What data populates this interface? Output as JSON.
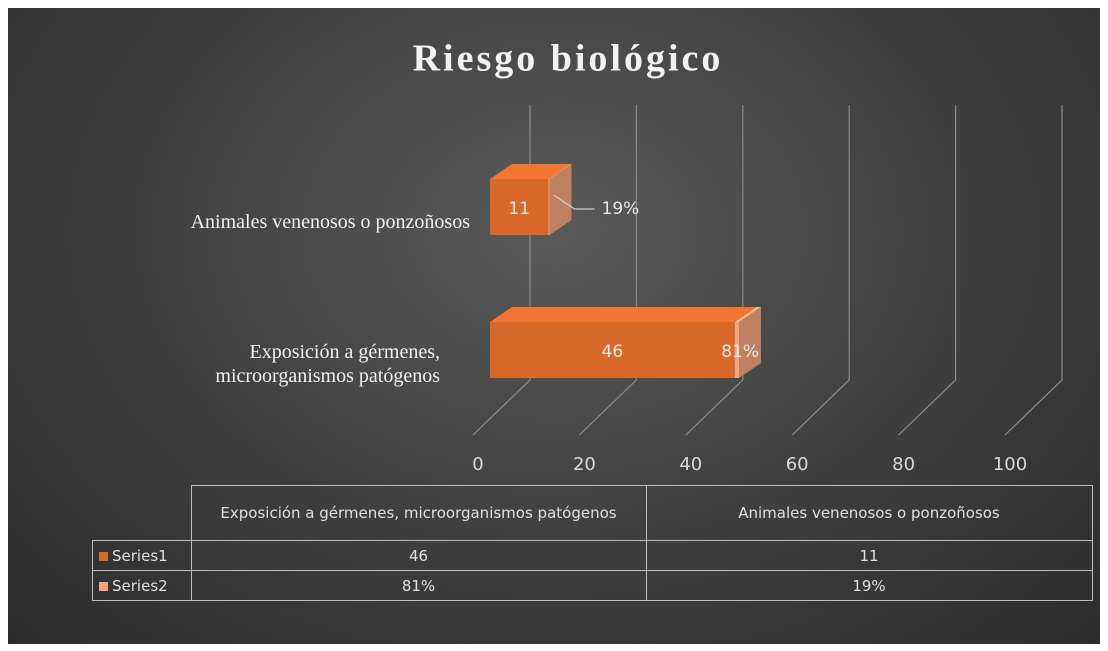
{
  "chart_data": {
    "type": "bar",
    "title": "Riesgo biológico",
    "categories": [
      "Exposición a gérmenes, microorganismos patógenos",
      "Animales venenosos o ponzoñosos"
    ],
    "series": [
      {
        "name": "Series1",
        "color": "#d9692b",
        "values": [
          46,
          11
        ]
      },
      {
        "name": "Series2",
        "color": "#f4a57c",
        "values": [
          0.81,
          0.19
        ],
        "value_labels": [
          "81%",
          "19%"
        ]
      }
    ],
    "xlim": [
      0,
      100
    ],
    "xticks": [
      0,
      20,
      40,
      60,
      80,
      100
    ],
    "grid": true,
    "stacked": true,
    "data_table": true
  }
}
